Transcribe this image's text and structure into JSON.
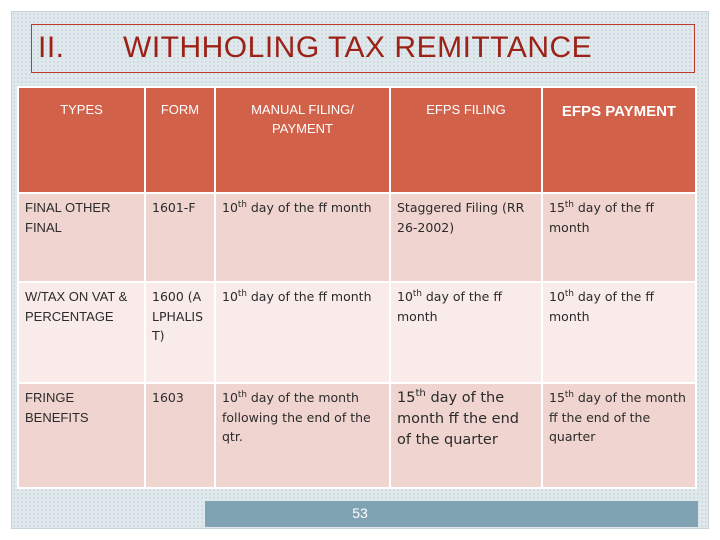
{
  "title": {
    "number": "II.",
    "text": "WITHHOLING TAX REMITTANCE"
  },
  "table": {
    "headers": [
      "TYPES",
      "FORM",
      "MANUAL FILING/ PAYMENT",
      "EFPS FILING",
      "EFPS PAYMENT"
    ],
    "rows": [
      {
        "type": "FINAL OTHER FINAL",
        "form": "1601-F",
        "manual": {
          "ordinal": "10",
          "suffix": "th",
          "rest": " day of the ff month"
        },
        "efps_filing": "Staggered Filing (RR 26-2002)",
        "efps_payment": {
          "ordinal": "15",
          "suffix": "th",
          "rest": " day of the ff month"
        }
      },
      {
        "type": "W/TAX ON VAT & PERCENTAGE",
        "form": "1600 (ALPHALIST)",
        "manual": {
          "ordinal": "10",
          "suffix": "th",
          "rest": " day of the ff month"
        },
        "efps_filing": {
          "ordinal": "10",
          "suffix": "th",
          "rest": " day of the ff month"
        },
        "efps_payment": {
          "ordinal": "10",
          "suffix": "th",
          "rest": " day of the ff month"
        }
      },
      {
        "type": "FRINGE BENEFITS",
        "form": "1603",
        "manual": {
          "ordinal": "10",
          "suffix": "th",
          "rest": " day of the month following the end of the qtr."
        },
        "efps_filing": {
          "ordinal": "15",
          "suffix": "th",
          "rest": " day of the month ff the end of the quarter"
        },
        "efps_payment": {
          "ordinal": "15",
          "suffix": "th",
          "rest": " day of the month ff the end of the quarter"
        }
      }
    ]
  },
  "page_number": "53",
  "colors": {
    "header": "#d2614a",
    "row_dark": "#f0d4cf",
    "row_light": "#f8ebe9",
    "title": "#9c2218",
    "footer": "#7fa3b3"
  }
}
